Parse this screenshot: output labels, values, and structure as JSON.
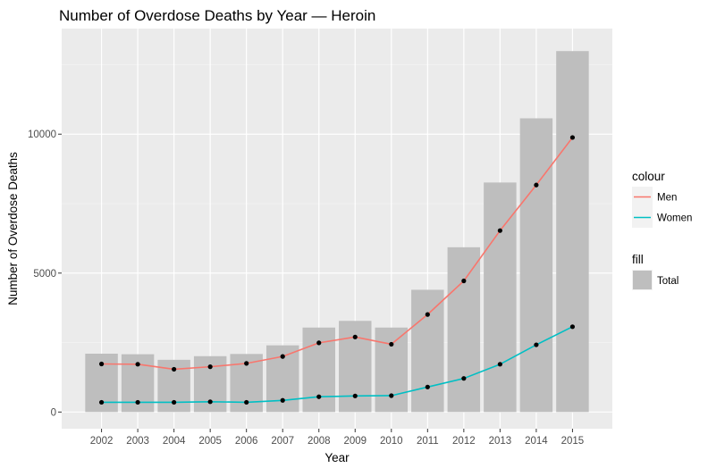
{
  "chart_data": {
    "type": "bar",
    "title": "Number of Overdose Deaths by Year — Heroin",
    "xlabel": "Year",
    "ylabel": "Number of Overdose Deaths",
    "categories": [
      "2002",
      "2003",
      "2004",
      "2005",
      "2006",
      "2007",
      "2008",
      "2009",
      "2010",
      "2011",
      "2012",
      "2013",
      "2014",
      "2015"
    ],
    "ylim": [
      -600,
      13800
    ],
    "yticks": [
      0,
      5000,
      10000
    ],
    "ytick_labels": [
      "0",
      "5000",
      "10000"
    ],
    "grid": true,
    "bars": {
      "name": "Total",
      "color": "#bebebe",
      "values": [
        2100,
        2080,
        1880,
        2010,
        2090,
        2400,
        3040,
        3280,
        3040,
        4400,
        5930,
        8260,
        10570,
        12990
      ]
    },
    "series": [
      {
        "name": "Men",
        "color": "#f8766d",
        "values": [
          1730,
          1720,
          1540,
          1630,
          1750,
          2000,
          2490,
          2700,
          2440,
          3510,
          4720,
          6530,
          8170,
          9880
        ]
      },
      {
        "name": "Women",
        "color": "#00bfc4",
        "values": [
          350,
          350,
          350,
          370,
          350,
          420,
          550,
          580,
          590,
          900,
          1210,
          1720,
          2420,
          3070
        ]
      }
    ],
    "legend": {
      "placement": "right",
      "colour_title": "colour",
      "fill_title": "fill"
    }
  },
  "colors": {
    "panel_background": "#ebebeb",
    "grid_major": "#ffffff",
    "point": "#000000"
  }
}
